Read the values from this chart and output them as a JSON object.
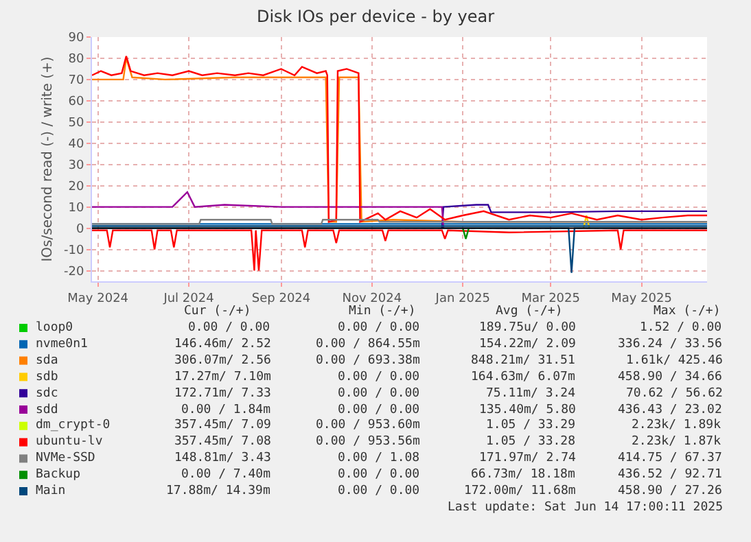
{
  "chart_data": {
    "type": "line",
    "title": "Disk IOs per device - by year",
    "ylabel": "IOs/second read (-) / write (+)",
    "xlim": [
      "2024-04-27",
      "2025-06-14"
    ],
    "xticks": [
      {
        "value": "2024-05-01",
        "label": "May 2024"
      },
      {
        "value": "2024-07-01",
        "label": "Jul 2024"
      },
      {
        "value": "2024-09-01",
        "label": "Sep 2024"
      },
      {
        "value": "2024-11-01",
        "label": "Nov 2024"
      },
      {
        "value": "2025-01-01",
        "label": "Jan 2025"
      },
      {
        "value": "2025-03-01",
        "label": "Mar 2025"
      },
      {
        "value": "2025-05-01",
        "label": "May 2025"
      }
    ],
    "ylim": [
      -25,
      90
    ],
    "yticks": [
      -20,
      -10,
      0,
      10,
      20,
      30,
      40,
      50,
      60,
      70,
      80,
      90
    ],
    "grid": true,
    "legend": "bottom",
    "marker": "none",
    "line_style": "solid",
    "ref_lines": [
      {
        "axis": "y",
        "value": 0,
        "color": "#000000"
      }
    ],
    "series": [
      {
        "name": "loop0",
        "color": "#00cc00"
      },
      {
        "name": "nvme0n1",
        "color": "#0066b3",
        "x": [
          "2024-04-27",
          "2024-09-01",
          "2025-01-01",
          "2025-06-14"
        ],
        "values": [
          2,
          2,
          2,
          2
        ]
      },
      {
        "name": "sda",
        "color": "#ff8000",
        "x": [
          "2024-04-27",
          "2024-05-18",
          "2024-05-20",
          "2024-05-24",
          "2024-06-15",
          "2024-08-01",
          "2024-10-01",
          "2024-10-03",
          "2024-10-08",
          "2024-10-10",
          "2024-10-23",
          "2024-10-25",
          "2024-11-15",
          "2025-01-01",
          "2025-03-01",
          "2025-06-14"
        ],
        "values": [
          70,
          70,
          80,
          71,
          70,
          71,
          71,
          3,
          3,
          71,
          71,
          3,
          4,
          3,
          3,
          3
        ]
      },
      {
        "name": "sdb",
        "color": "#ffcc00",
        "x": [
          "2025-03-23",
          "2025-03-25",
          "2025-03-27"
        ],
        "values": [
          0,
          6,
          0
        ]
      },
      {
        "name": "sdc",
        "color": "#330099",
        "x": [
          "2024-12-18",
          "2024-12-19",
          "2025-01-10",
          "2025-01-18",
          "2025-01-20",
          "2025-03-01",
          "2025-04-15",
          "2025-06-14"
        ],
        "values": [
          0,
          10,
          11,
          11,
          7.5,
          7.5,
          8,
          8
        ]
      },
      {
        "name": "sdd",
        "color": "#990099",
        "x": [
          "2024-04-27",
          "2024-06-20",
          "2024-06-30",
          "2024-07-05",
          "2024-07-25",
          "2024-09-01",
          "2024-11-01",
          "2024-12-18",
          "2024-12-19"
        ],
        "values": [
          10,
          10,
          17,
          10,
          11,
          10,
          10,
          10,
          0
        ]
      },
      {
        "name": "dm_crypt-0",
        "color": "#ccff00"
      },
      {
        "name": "ubuntu-lv",
        "color": "#ff0000",
        "x": [
          "2024-04-27",
          "2024-05-03",
          "2024-05-10",
          "2024-05-17",
          "2024-05-20",
          "2024-05-23",
          "2024-06-01",
          "2024-06-10",
          "2024-06-20",
          "2024-07-01",
          "2024-07-10",
          "2024-07-20",
          "2024-08-01",
          "2024-08-10",
          "2024-08-20",
          "2024-09-01",
          "2024-09-10",
          "2024-09-15",
          "2024-09-25",
          "2024-10-01",
          "2024-10-02",
          "2024-10-03",
          "2024-10-08",
          "2024-10-09",
          "2024-10-15",
          "2024-10-23",
          "2024-10-24",
          "2024-11-05",
          "2024-11-10",
          "2024-11-20",
          "2024-12-01",
          "2024-12-10",
          "2024-12-20",
          "2025-01-01",
          "2025-01-15",
          "2025-02-01",
          "2025-02-15",
          "2025-03-01",
          "2025-03-15",
          "2025-04-01",
          "2025-04-15",
          "2025-05-01",
          "2025-05-15",
          "2025-06-01",
          "2025-06-14"
        ],
        "values": [
          72,
          74,
          72,
          73,
          81,
          74,
          72,
          73,
          72,
          74,
          72,
          73,
          72,
          73,
          72,
          75,
          72,
          76,
          73,
          74,
          72,
          3,
          4,
          74,
          75,
          73,
          3,
          7,
          4,
          8,
          5,
          9,
          4,
          6,
          8,
          4,
          6,
          5,
          7,
          4,
          6,
          4,
          5,
          6,
          6
        ]
      },
      {
        "color": "#ff0000",
        "x": [
          "2024-04-27",
          "2024-05-07",
          "2024-05-09",
          "2024-05-11",
          "2024-06-06",
          "2024-06-08",
          "2024-06-10",
          "2024-06-19",
          "2024-06-21",
          "2024-06-23",
          "2024-08-12",
          "2024-08-14",
          "2024-08-15",
          "2024-08-17",
          "2024-08-19",
          "2024-09-15",
          "2024-09-17",
          "2024-09-19",
          "2024-10-06",
          "2024-10-08",
          "2024-10-10",
          "2024-11-08",
          "2024-11-10",
          "2024-11-12",
          "2024-12-18",
          "2024-12-20",
          "2024-12-22",
          "2025-02-01",
          "2025-04-15",
          "2025-04-17",
          "2025-04-19",
          "2025-06-14"
        ],
        "values": [
          -1,
          -1,
          -9,
          -1,
          -1,
          -10,
          -1,
          -1,
          -9,
          -1,
          -1,
          -20,
          -1,
          -20,
          -1,
          -1,
          -9,
          -1,
          -1,
          -7,
          -1,
          -1,
          -6,
          -1,
          -1,
          -5,
          -1,
          -2,
          -1,
          -10,
          -1,
          -1
        ]
      },
      {
        "name": "NVMe-SSD",
        "color": "#808080",
        "x": [
          "2024-04-27",
          "2024-07-08",
          "2024-07-09",
          "2024-08-25",
          "2024-08-26",
          "2024-09-28",
          "2024-09-29",
          "2024-11-05",
          "2024-11-06",
          "2025-06-14"
        ],
        "values": [
          2,
          2,
          4,
          4,
          2,
          2,
          4,
          4,
          3,
          3
        ]
      },
      {
        "name": "Backup",
        "color": "#008f00",
        "x": [
          "2025-01-01",
          "2025-01-03",
          "2025-01-05"
        ],
        "values": [
          0,
          -5,
          0
        ]
      },
      {
        "name": "Main",
        "color": "#00487d",
        "x": [
          "2024-04-27",
          "2025-03-13",
          "2025-03-15",
          "2025-03-17",
          "2025-06-14"
        ],
        "values": [
          1,
          1,
          1,
          1,
          1
        ]
      },
      {
        "color": "#00487d",
        "x": [
          "2024-04-27",
          "2025-03-13",
          "2025-03-15",
          "2025-03-17",
          "2025-06-14"
        ],
        "values": [
          0,
          0,
          -21,
          0,
          0
        ]
      }
    ],
    "annotations": [
      "Cur (-/+)",
      "Min (-/+)",
      "Avg (-/+)",
      "Max (-/+)",
      "0.00 / 0.00",
      "0.00 / 0.00",
      "189.75u/ 0.00",
      "1.52 / 0.00",
      "146.46m/ 2.52",
      "0.00 / 864.55m",
      "154.22m/ 2.09",
      "336.24 / 33.56",
      "306.07m/ 2.56",
      "0.00 / 693.38m",
      "848.21m/ 31.51",
      "1.61k/ 425.46",
      "17.27m/ 7.10m",
      "0.00 / 0.00",
      "164.63m/ 6.07m",
      "458.90 / 34.66",
      "172.71m/ 7.33",
      "0.00 / 0.00",
      "75.11m/ 3.24",
      "70.62 / 56.62",
      "0.00 / 1.84m",
      "0.00 / 0.00",
      "135.40m/ 5.80",
      "436.43 / 23.02",
      "357.45m/ 7.09",
      "0.00 / 953.60m",
      "1.05 / 33.29",
      "2.23k/ 1.89k",
      "357.45m/ 7.08",
      "0.00 / 953.56m",
      "1.05 / 33.28",
      "2.23k/ 1.87k",
      "148.81m/ 3.43",
      "0.00 / 1.08",
      "171.97m/ 2.74",
      "414.75 / 67.37",
      "0.00 / 7.40m",
      "0.00 / 0.00",
      "66.73m/ 18.18m",
      "436.52 / 92.71",
      "17.88m/ 14.39m",
      "0.00 / 0.00",
      "172.00m/ 11.68m",
      "458.90 / 27.26",
      "Last update: Sat Jun 14 17:00:11 2025"
    ]
  }
}
